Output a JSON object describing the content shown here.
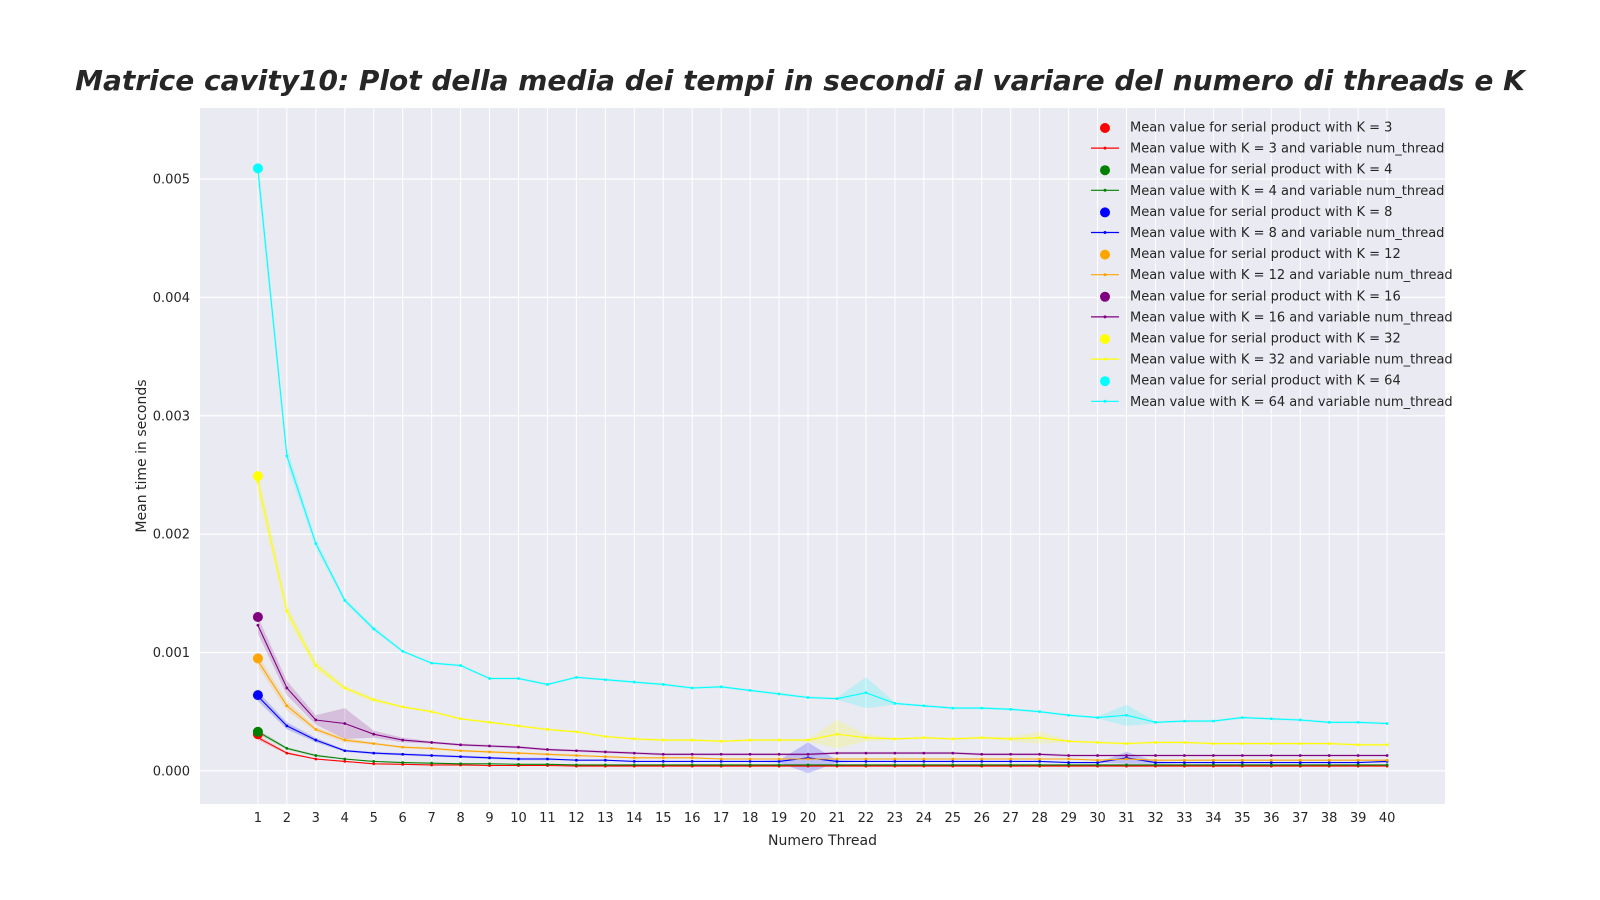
{
  "chart_data": {
    "type": "line",
    "title": "Matrice cavity10: Plot della media dei tempi in secondi al variare del numero di threads e K",
    "xlabel": "Numero Thread",
    "ylabel": "Mean time in seconds",
    "x": [
      1,
      2,
      3,
      4,
      5,
      6,
      7,
      8,
      9,
      10,
      11,
      12,
      13,
      14,
      15,
      16,
      17,
      18,
      19,
      20,
      21,
      22,
      23,
      24,
      25,
      26,
      27,
      28,
      29,
      30,
      31,
      32,
      33,
      34,
      35,
      36,
      37,
      38,
      39,
      40
    ],
    "xlim": [
      -1,
      42
    ],
    "ylim": [
      -0.00028,
      0.0056
    ],
    "yticks": [
      0.0,
      0.001,
      0.002,
      0.003,
      0.004,
      0.005
    ],
    "ytick_labels": [
      "0.000",
      "0.001",
      "0.002",
      "0.003",
      "0.004",
      "0.005"
    ],
    "grid": true,
    "legend_position": "top-right",
    "serial_points": [
      {
        "name": "Mean value for serial product with K = 3",
        "color": "#ff0000",
        "x": 1,
        "y": 0.00031
      },
      {
        "name": "Mean value for serial product with K = 4",
        "color": "#008000",
        "x": 1,
        "y": 0.00033
      },
      {
        "name": "Mean value for serial product with K = 8",
        "color": "#0000ff",
        "x": 1,
        "y": 0.00064
      },
      {
        "name": "Mean value for serial product with K = 12",
        "color": "#ffa500",
        "x": 1,
        "y": 0.00095
      },
      {
        "name": "Mean value for serial product with K = 16",
        "color": "#800080",
        "x": 1,
        "y": 0.0013
      },
      {
        "name": "Mean value for serial product with K = 32",
        "color": "#ffff00",
        "x": 1,
        "y": 0.00249
      },
      {
        "name": "Mean value for serial product with K = 64",
        "color": "#00ffff",
        "x": 1,
        "y": 0.00509
      }
    ],
    "series": [
      {
        "name": "Mean value with K = 3 and variable num_thread",
        "color": "#ff0000",
        "values": [
          0.00028,
          0.00015,
          0.0001,
          8e-05,
          6e-05,
          5.5e-05,
          5e-05,
          5e-05,
          4.5e-05,
          4.5e-05,
          4.5e-05,
          4e-05,
          4e-05,
          4e-05,
          4e-05,
          4e-05,
          4e-05,
          4e-05,
          4e-05,
          4e-05,
          4e-05,
          4e-05,
          4e-05,
          4e-05,
          4e-05,
          4e-05,
          4e-05,
          4e-05,
          4e-05,
          4e-05,
          4e-05,
          4e-05,
          4e-05,
          4e-05,
          4e-05,
          4e-05,
          4e-05,
          4e-05,
          4e-05,
          4e-05
        ],
        "band": [
          2e-05,
          1e-05,
          5e-06,
          5e-06,
          0,
          0,
          0,
          0,
          0,
          0,
          0,
          0,
          0,
          0,
          0,
          0,
          0,
          0,
          0,
          0,
          0,
          0,
          0,
          0,
          0,
          0,
          0,
          0,
          0,
          0,
          0,
          0,
          0,
          0,
          0,
          0,
          0,
          0,
          0,
          0
        ]
      },
      {
        "name": "Mean value with K = 4 and variable num_thread",
        "color": "#008000",
        "values": [
          0.00033,
          0.00019,
          0.00013,
          0.0001,
          8e-05,
          7e-05,
          6.5e-05,
          6e-05,
          6e-05,
          5.5e-05,
          5.5e-05,
          5e-05,
          5e-05,
          5e-05,
          5e-05,
          5e-05,
          5e-05,
          5e-05,
          5e-05,
          5e-05,
          5e-05,
          5e-05,
          5e-05,
          5e-05,
          5e-05,
          5e-05,
          5e-05,
          5e-05,
          5e-05,
          5e-05,
          5e-05,
          5e-05,
          5e-05,
          5e-05,
          5e-05,
          5e-05,
          5e-05,
          5e-05,
          5e-05,
          5e-05
        ],
        "band": [
          2e-05,
          1e-05,
          1e-05,
          5e-06,
          0,
          0,
          0,
          0,
          0,
          0,
          0,
          0,
          0,
          0,
          0,
          0,
          0,
          0,
          0,
          0,
          0,
          0,
          0,
          0,
          0,
          0,
          0,
          0,
          0,
          0,
          0,
          0,
          0,
          0,
          0,
          0,
          0,
          0,
          0,
          0
        ]
      },
      {
        "name": "Mean value with K = 8 and variable num_thread",
        "color": "#0000ff",
        "values": [
          0.00063,
          0.00038,
          0.00026,
          0.00017,
          0.00015,
          0.00014,
          0.00013,
          0.00012,
          0.00011,
          0.0001,
          0.0001,
          9e-05,
          9e-05,
          8e-05,
          8e-05,
          8e-05,
          8e-05,
          8e-05,
          8e-05,
          0.00011,
          8e-05,
          8e-05,
          8e-05,
          8e-05,
          8e-05,
          8e-05,
          8e-05,
          8e-05,
          7e-05,
          7e-05,
          0.00011,
          7e-05,
          7e-05,
          7e-05,
          7e-05,
          7e-05,
          7e-05,
          7e-05,
          7e-05,
          8e-05
        ],
        "band": [
          4e-05,
          3e-05,
          2e-05,
          1e-05,
          1e-05,
          1e-05,
          1e-05,
          1e-05,
          1e-05,
          1e-05,
          1e-05,
          0,
          0,
          0,
          0,
          0,
          0,
          0,
          1e-05,
          0.00013,
          1e-05,
          0,
          0,
          0,
          0,
          0,
          0,
          0,
          0,
          0,
          5e-05,
          1e-05,
          0,
          0,
          0,
          0,
          0,
          0,
          0,
          1e-05
        ]
      },
      {
        "name": "Mean value with K = 12 and variable num_thread",
        "color": "#ffa500",
        "values": [
          0.00093,
          0.00055,
          0.00035,
          0.00026,
          0.00023,
          0.0002,
          0.00019,
          0.00017,
          0.00016,
          0.00015,
          0.00014,
          0.00013,
          0.00012,
          0.00011,
          0.00011,
          0.00011,
          0.0001,
          0.0001,
          0.0001,
          0.0001,
          0.0001,
          0.0001,
          0.0001,
          0.0001,
          0.0001,
          0.0001,
          0.0001,
          0.0001,
          0.0001,
          9e-05,
          0.0001,
          9e-05,
          9e-05,
          9e-05,
          9e-05,
          9e-05,
          9e-05,
          9e-05,
          9e-05,
          9e-05
        ],
        "band": [
          5e-05,
          4e-05,
          2e-05,
          2e-05,
          1e-05,
          1e-05,
          1e-05,
          1e-05,
          1e-05,
          1e-05,
          1e-05,
          1e-05,
          0,
          0,
          0,
          0,
          0,
          0,
          0,
          0,
          0,
          0,
          0,
          0,
          0,
          0,
          0,
          0,
          0,
          0,
          0,
          0,
          0,
          0,
          0,
          0,
          0,
          0,
          0,
          0
        ]
      },
      {
        "name": "Mean value with K = 16 and variable num_thread",
        "color": "#800080",
        "values": [
          0.00123,
          0.0007,
          0.00043,
          0.0004,
          0.00031,
          0.00026,
          0.00024,
          0.00022,
          0.00021,
          0.0002,
          0.00018,
          0.00017,
          0.00016,
          0.00015,
          0.00014,
          0.00014,
          0.00014,
          0.00014,
          0.00014,
          0.00014,
          0.00015,
          0.00015,
          0.00015,
          0.00015,
          0.00015,
          0.00014,
          0.00014,
          0.00014,
          0.00013,
          0.00013,
          0.00013,
          0.00013,
          0.00013,
          0.00013,
          0.00013,
          0.00013,
          0.00013,
          0.00013,
          0.00013,
          0.00013
        ],
        "band": [
          7e-05,
          6e-05,
          4e-05,
          0.00013,
          3e-05,
          2e-05,
          1e-05,
          1e-05,
          1e-05,
          1e-05,
          1e-05,
          1e-05,
          1e-05,
          1e-05,
          1e-05,
          1e-05,
          1e-05,
          1e-05,
          1e-05,
          1e-05,
          1e-05,
          1e-05,
          1e-05,
          1e-05,
          1e-05,
          1e-05,
          1e-05,
          1e-05,
          1e-05,
          1e-05,
          1e-05,
          1e-05,
          1e-05,
          1e-05,
          1e-05,
          1e-05,
          1e-05,
          1e-05,
          1e-05,
          1e-05
        ]
      },
      {
        "name": "Mean value with K = 32 and variable num_thread",
        "color": "#ffff00",
        "values": [
          0.00244,
          0.00135,
          0.00089,
          0.0007,
          0.0006,
          0.00054,
          0.0005,
          0.00044,
          0.00041,
          0.00038,
          0.00035,
          0.00033,
          0.00029,
          0.00027,
          0.00026,
          0.00026,
          0.00025,
          0.00026,
          0.00026,
          0.00026,
          0.00031,
          0.00028,
          0.00027,
          0.00028,
          0.00027,
          0.00028,
          0.00027,
          0.00028,
          0.00025,
          0.00024,
          0.00023,
          0.00024,
          0.00024,
          0.00023,
          0.00023,
          0.00023,
          0.00023,
          0.00023,
          0.00022,
          0.00022
        ],
        "band": [
          0.0001,
          6e-05,
          4e-05,
          2e-05,
          2e-05,
          1e-05,
          1e-05,
          1e-05,
          1e-05,
          1e-05,
          1e-05,
          1e-05,
          1e-05,
          1e-05,
          1e-05,
          1e-05,
          1e-05,
          1e-05,
          1e-05,
          1e-05,
          0.00012,
          3e-05,
          1e-05,
          1e-05,
          1e-05,
          1e-05,
          2e-05,
          5e-05,
          1e-05,
          1e-05,
          1e-05,
          1e-05,
          1e-05,
          1e-05,
          1e-05,
          1e-05,
          1e-05,
          1e-05,
          1e-05,
          1e-05
        ]
      },
      {
        "name": "Mean value with K = 64 and variable num_thread",
        "color": "#00ffff",
        "values": [
          0.00508,
          0.00266,
          0.00192,
          0.00144,
          0.0012,
          0.00101,
          0.00091,
          0.00089,
          0.00078,
          0.00078,
          0.00073,
          0.00079,
          0.00077,
          0.00075,
          0.00073,
          0.0007,
          0.00071,
          0.00068,
          0.00065,
          0.00062,
          0.00061,
          0.00066,
          0.00057,
          0.00055,
          0.00053,
          0.00053,
          0.00052,
          0.0005,
          0.00047,
          0.00045,
          0.00047,
          0.00041,
          0.00042,
          0.00042,
          0.00045,
          0.00044,
          0.00043,
          0.00041,
          0.00041,
          0.0004
        ],
        "band": [
          0.0001,
          7e-05,
          4e-05,
          2e-05,
          2e-05,
          1e-05,
          1e-05,
          1e-05,
          1e-05,
          1e-05,
          1e-05,
          1e-05,
          1e-05,
          1e-05,
          1e-05,
          1e-05,
          1e-05,
          1e-05,
          1e-05,
          1e-05,
          1e-05,
          0.00013,
          1e-05,
          1e-05,
          1e-05,
          1e-05,
          1e-05,
          1e-05,
          1e-05,
          1e-05,
          9e-05,
          1e-05,
          1e-05,
          1e-05,
          1e-05,
          1e-05,
          1e-05,
          1e-05,
          1e-05,
          1e-05
        ]
      }
    ]
  }
}
